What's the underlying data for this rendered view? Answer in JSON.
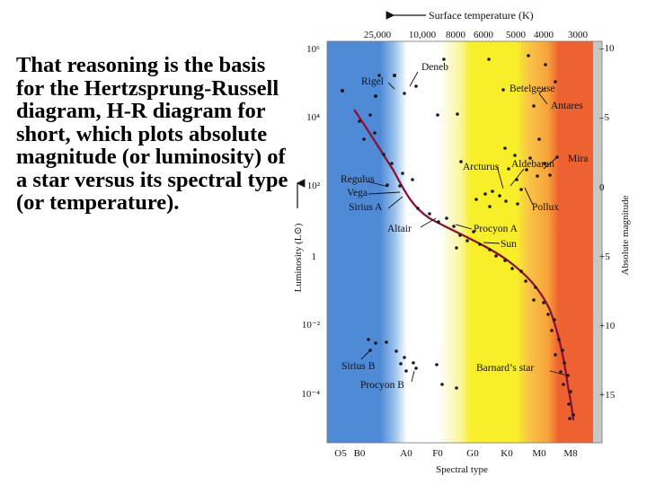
{
  "slide": {
    "text": "That reasoning is the basis for the Hertzsprung-Russell diagram, H-R diagram for short, which plots absolute magnitude (or luminosity) of a star versus its spectral type (or temperature)."
  },
  "diagram": {
    "top_axis_title": "Surface temperature (K)",
    "top_ticks": [
      "25,000",
      "10,000",
      "8000",
      "6000",
      "5000",
      "4000",
      "3000"
    ],
    "left_axis_title": "Luminosity (L⊙)",
    "left_ticks": [
      "10⁶",
      "10⁴",
      "10²",
      "1",
      "10⁻²",
      "10⁻⁴"
    ],
    "right_axis_title": "Absolute magnitude",
    "right_ticks": [
      "–10",
      "–5",
      "0",
      "+5",
      "+10",
      "+15"
    ],
    "bottom_axis_title": "Spectral type",
    "bottom_ticks": [
      "O5",
      "B0",
      "A0",
      "F0",
      "G0",
      "K0",
      "M0",
      "M8"
    ],
    "star_labels": {
      "rigel": "Rigel",
      "deneb": "Deneb",
      "betelgeuse": "Betelgeuse",
      "antares": "Antares",
      "regulus": "Regulus",
      "vega": "Vega",
      "sirius_a": "Sirius A",
      "altair": "Altair",
      "arcturus": "Arcturus",
      "aldebaran": "Aldebaran",
      "mira": "Mira",
      "pollux": "Pollux",
      "procyon_a": "Procyon A",
      "sun": "Sun",
      "sirius_b": "Sirius B",
      "procyon_b": "Procyon B",
      "barnards_star": "Barnard’s star"
    },
    "colors": {
      "blue": "#4f8ad6",
      "white": "#ffffff",
      "yellow": "#f8ef2a",
      "orange": "#f7a23a",
      "red": "#ee6232",
      "gray_band": "#c7c7c7",
      "main_sequence_curve": "#8a1138",
      "dots": "#1a1a1a"
    }
  }
}
